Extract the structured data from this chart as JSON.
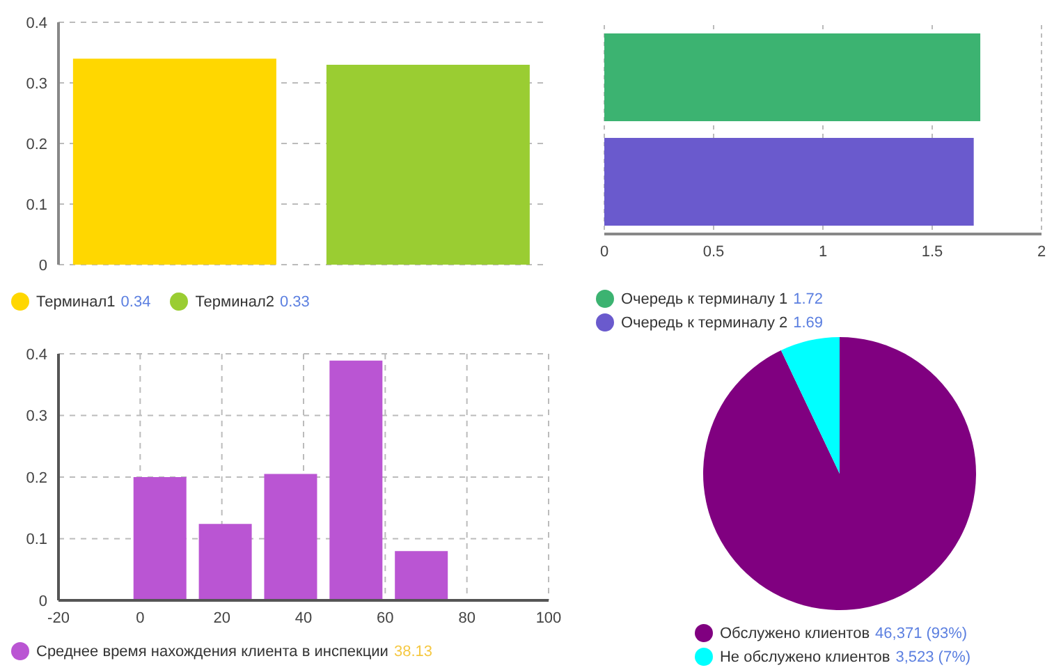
{
  "chart_data": [
    {
      "type": "bar",
      "categories": [
        null
      ],
      "series": [
        {
          "name": "Терминал1",
          "color": "#ffd700",
          "values": [
            0.34
          ]
        },
        {
          "name": "Терминал2",
          "color": "#9acd32",
          "values": [
            0.33
          ]
        }
      ],
      "ylim": [
        0,
        0.4
      ],
      "yticks": [
        0,
        0.1,
        0.2,
        0.3,
        0.4
      ],
      "grid": "y",
      "legend": "bottom",
      "annotations": [
        "0.34",
        "0.33"
      ],
      "tick_labels": "y"
    },
    {
      "type": "bar",
      "orientation": "horizontal",
      "categories": [
        null
      ],
      "series": [
        {
          "name": "Очередь к терминалу 1",
          "color": "#3cb371",
          "values": [
            1.72
          ]
        },
        {
          "name": "Очередь к терминалу 2",
          "color": "#6a5acd",
          "values": [
            1.69
          ]
        }
      ],
      "xlim": [
        0,
        2
      ],
      "xticks": [
        0,
        0.5,
        1,
        1.5,
        2
      ],
      "grid": "x",
      "legend": "bottom",
      "annotations": [
        "1.72",
        "1.69"
      ],
      "tick_labels": "x"
    },
    {
      "type": "bar",
      "x": [
        5,
        21,
        37,
        53,
        69
      ],
      "series": [
        {
          "name": "Среднее время нахождения клиента в инспекции",
          "color": "#ba55d3",
          "values": [
            0.2,
            0.124,
            0.205,
            0.389,
            0.08
          ]
        }
      ],
      "xlim": [
        -20,
        100
      ],
      "xticks": [
        -20,
        0,
        20,
        40,
        60,
        80,
        100
      ],
      "ylim": [
        0,
        0.4
      ],
      "yticks": [
        0,
        0.1,
        0.2,
        0.3,
        0.4
      ],
      "grid": true,
      "legend": "bottom",
      "annotations": [
        "38.13"
      ]
    },
    {
      "type": "pie",
      "categories": [
        "Обслужено клиентов",
        "Не обслужено клиентов"
      ],
      "values": [
        46371,
        3523
      ],
      "colors": [
        "#800080",
        "#00ffff"
      ],
      "value_labels": [
        "46,371 (93%)",
        "3,523 (7%)"
      ],
      "legend": "bottom"
    }
  ]
}
